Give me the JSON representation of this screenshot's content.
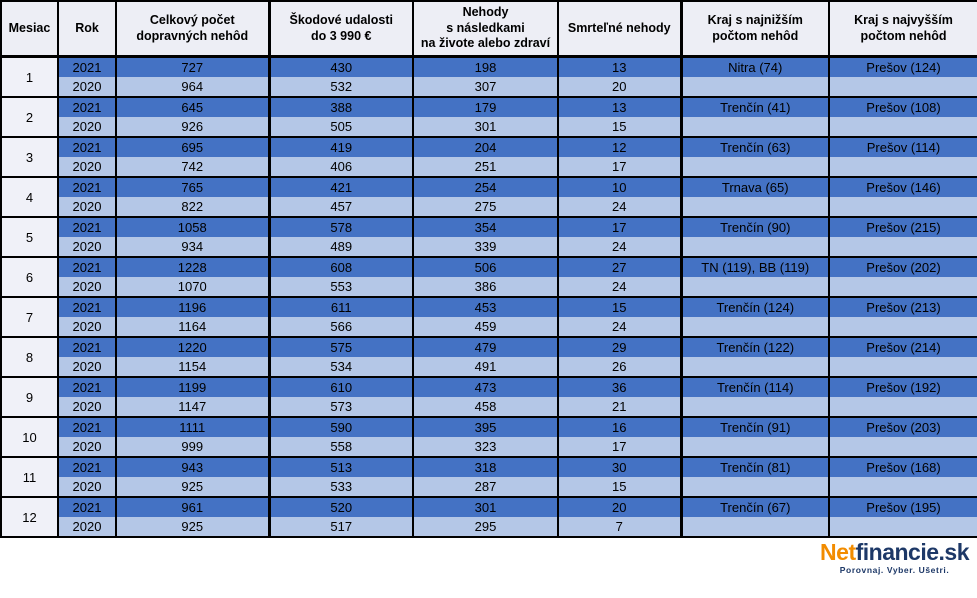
{
  "table": {
    "headers": [
      "Mesiac",
      "Rok",
      "Celkový počet\ndopravných nehôd",
      "Škodové udalosti\ndo 3 990 €",
      "Nehody\ns následkami\nna živote alebo zdraví",
      "Smrteľné nehody",
      "Kraj s najnižším\npočtom nehôd",
      "Kraj s najvyšším\npočtom nehôd"
    ]
  },
  "chart_data": {
    "type": "table",
    "columns": [
      "Mesiac",
      "Rok",
      "Celkový počet dopravných nehôd",
      "Škodové udalosti do 3 990 €",
      "Nehody s následkami na živote alebo zdraví",
      "Smrteľné nehody",
      "Kraj s najnižším počtom nehôd",
      "Kraj s najvyšším počtom nehôd"
    ],
    "rows": [
      [
        "1",
        "2021",
        "727",
        "430",
        "198",
        "13",
        "Nitra (74)",
        "Prešov (124)"
      ],
      [
        "",
        "2020",
        "964",
        "532",
        "307",
        "20",
        "",
        ""
      ],
      [
        "2",
        "2021",
        "645",
        "388",
        "179",
        "13",
        "Trenčín (41)",
        "Prešov (108)"
      ],
      [
        "",
        "2020",
        "926",
        "505",
        "301",
        "15",
        "",
        ""
      ],
      [
        "3",
        "2021",
        "695",
        "419",
        "204",
        "12",
        "Trenčín (63)",
        "Prešov (114)"
      ],
      [
        "",
        "2020",
        "742",
        "406",
        "251",
        "17",
        "",
        ""
      ],
      [
        "4",
        "2021",
        "765",
        "421",
        "254",
        "10",
        "Trnava (65)",
        "Prešov (146)"
      ],
      [
        "",
        "2020",
        "822",
        "457",
        "275",
        "24",
        "",
        ""
      ],
      [
        "5",
        "2021",
        "1058",
        "578",
        "354",
        "17",
        "Trenčín (90)",
        "Prešov (215)"
      ],
      [
        "",
        "2020",
        "934",
        "489",
        "339",
        "24",
        "",
        ""
      ],
      [
        "6",
        "2021",
        "1228",
        "608",
        "506",
        "27",
        "TN (119), BB (119)",
        "Prešov (202)"
      ],
      [
        "",
        "2020",
        "1070",
        "553",
        "386",
        "24",
        "",
        ""
      ],
      [
        "7",
        "2021",
        "1196",
        "611",
        "453",
        "15",
        "Trenčín (124)",
        "Prešov (213)"
      ],
      [
        "",
        "2020",
        "1164",
        "566",
        "459",
        "24",
        "",
        ""
      ],
      [
        "8",
        "2021",
        "1220",
        "575",
        "479",
        "29",
        "Trenčín (122)",
        "Prešov (214)"
      ],
      [
        "",
        "2020",
        "1154",
        "534",
        "491",
        "26",
        "",
        ""
      ],
      [
        "9",
        "2021",
        "1199",
        "610",
        "473",
        "36",
        "Trenčín (114)",
        "Prešov (192)"
      ],
      [
        "",
        "2020",
        "1147",
        "573",
        "458",
        "21",
        "",
        ""
      ],
      [
        "10",
        "2021",
        "1111",
        "590",
        "395",
        "16",
        "Trenčín (91)",
        "Prešov (203)"
      ],
      [
        "",
        "2020",
        "999",
        "558",
        "323",
        "17",
        "",
        ""
      ],
      [
        "11",
        "2021",
        "943",
        "513",
        "318",
        "30",
        "Trenčín (81)",
        "Prešov (168)"
      ],
      [
        "",
        "2020",
        "925",
        "533",
        "287",
        "15",
        "",
        ""
      ],
      [
        "12",
        "2021",
        "961",
        "520",
        "301",
        "20",
        "Trenčín (67)",
        "Prešov (195)"
      ],
      [
        "",
        "2020",
        "925",
        "517",
        "295",
        "7",
        "",
        ""
      ]
    ]
  },
  "colors": {
    "row_2021": "#4472C4",
    "row_2020": "#B4C7E7",
    "header_bg": "#EDEEF5",
    "month_bg": "#F0F1F8",
    "border": "#000000",
    "logo_orange": "#F28C00",
    "logo_navy": "#1D3867"
  },
  "logo": {
    "brand_prefix": "Net",
    "brand_suffix": "financie.sk",
    "tagline": "Porovnaj. Vyber. Ušetri."
  }
}
